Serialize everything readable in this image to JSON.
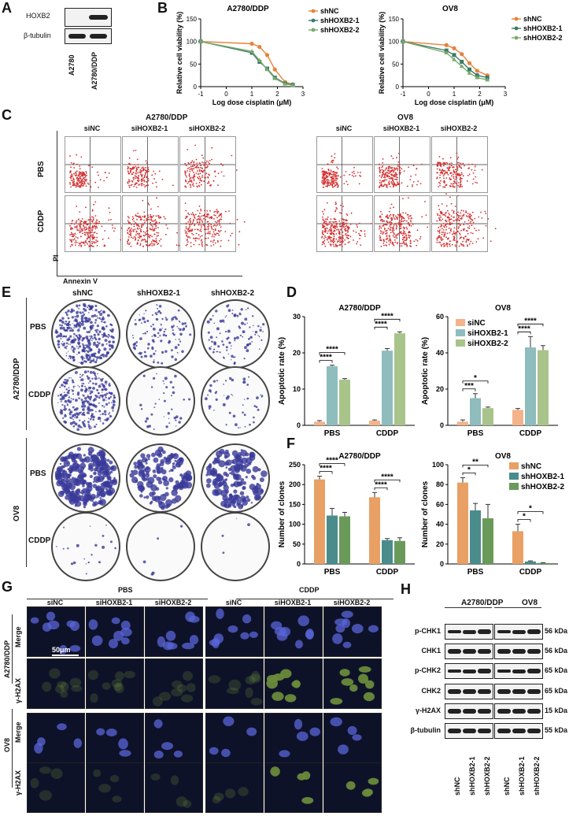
{
  "panels": {
    "A": "A",
    "B": "B",
    "C": "C",
    "D": "D",
    "E": "E",
    "F": "F",
    "G": "G",
    "H": "H"
  },
  "panelA": {
    "rows": [
      "HOXB2",
      "β-tubulin"
    ],
    "cols": [
      "A2780",
      "A2780/DDP"
    ]
  },
  "panelB": {
    "ylabel": "Relative cell viability (%)",
    "xlabel": "Log dose cisplatin (μM)",
    "legend": [
      "shNC",
      "shHOXB2-1",
      "shHOXB2-2"
    ],
    "colors": [
      "#e8823a",
      "#3a7a6a",
      "#7aaa6a"
    ]
  },
  "panelC": {
    "groups": [
      "A2780/DDP",
      "OV8"
    ],
    "cols": [
      "siNC",
      "siHOXB2-1",
      "siHOXB2-2"
    ],
    "rows": [
      "PBS",
      "CDDP"
    ],
    "ylabel": "PI",
    "xlabel": "Annexin V"
  },
  "panelE": {
    "cols": [
      "shNC",
      "shHOXB2-1",
      "shHOXB2-2"
    ],
    "groups": [
      "A2780/DDP",
      "OV8"
    ],
    "rows": [
      "PBS",
      "CDDP"
    ]
  },
  "panelD": {
    "ylabel": "Apoptotic rate (%)",
    "legend": [
      "siNC",
      "siHOXB2-1",
      "siHOXB2-2"
    ],
    "colors": [
      "#f4b38a",
      "#8fbcbc",
      "#a8c48a"
    ]
  },
  "panelF": {
    "ylabel": "Number of clones",
    "legend": [
      "shNC",
      "shHOXB2-1",
      "shHOXB2-2"
    ],
    "colors": [
      "#e8a064",
      "#4a8c8c",
      "#6a9a5a"
    ]
  },
  "panelG": {
    "conds": [
      "PBS",
      "CDDP"
    ],
    "cols": [
      "siNC",
      "siHOXB2-1",
      "siHOXB2-2",
      "siNC",
      "siHOXB2-1",
      "siHOXB2-2"
    ],
    "groups": [
      "A2780/DDP",
      "OV8"
    ],
    "rows": [
      "Merge",
      "γ-H2AX"
    ],
    "scalebar": "50μm"
  },
  "panelH": {
    "groups": [
      "A2780/DDP",
      "OV8"
    ],
    "rows": [
      "p-CHK1",
      "CHK1",
      "p-CHK2",
      "CHK2",
      "γ-H2AX",
      "β-tubulin"
    ],
    "sizes": [
      "56 kDa",
      "56 kDa",
      "65 kDa",
      "65 kDa",
      "15 kDa",
      "55 kDa"
    ],
    "lanes": [
      "shNC",
      "shHOXB2-1",
      "shHOXB2-2",
      "shNC",
      "shHOXB2-1",
      "shHOXB2-2"
    ]
  },
  "chart_data": [
    {
      "type": "line",
      "title": "A2780/DDP",
      "xlabel": "Log dose cisplatin (μM)",
      "ylabel": "Relative cell viability (%)",
      "xlim": [
        -1,
        3
      ],
      "ylim": [
        0,
        150
      ],
      "xticks": [
        "-1",
        "0",
        "1",
        "2",
        "3"
      ],
      "yticks": [
        "0",
        "50",
        "100",
        "150"
      ],
      "series": [
        {
          "name": "shNC",
          "x": [
            -1,
            1,
            1.3,
            1.6,
            1.9,
            2.3,
            2.6
          ],
          "y": [
            100,
            95,
            88,
            70,
            38,
            10,
            5
          ]
        },
        {
          "name": "shHOXB2-1",
          "x": [
            -1,
            1,
            1.3,
            1.6,
            1.9,
            2.3,
            2.6
          ],
          "y": [
            100,
            75,
            55,
            40,
            20,
            7,
            4
          ]
        },
        {
          "name": "shHOXB2-2",
          "x": [
            -1,
            1,
            1.3,
            1.6,
            1.9,
            2.3,
            2.6
          ],
          "y": [
            100,
            78,
            58,
            38,
            18,
            6,
            3
          ]
        }
      ]
    },
    {
      "type": "line",
      "title": "OV8",
      "xlabel": "Log dose cisplatin (μM)",
      "ylabel": "Relative cell viability (%)",
      "xlim": [
        -1,
        3
      ],
      "ylim": [
        0,
        150
      ],
      "xticks": [
        "-1",
        "0",
        "1",
        "2",
        "3"
      ],
      "yticks": [
        "0",
        "50",
        "100",
        "150"
      ],
      "series": [
        {
          "name": "shNC",
          "x": [
            -1,
            0.7,
            1,
            1.3,
            1.6,
            1.9,
            2.3
          ],
          "y": [
            100,
            92,
            85,
            72,
            52,
            35,
            25
          ]
        },
        {
          "name": "shHOXB2-1",
          "x": [
            -1,
            0.7,
            1,
            1.3,
            1.6,
            1.9,
            2.3
          ],
          "y": [
            100,
            80,
            70,
            55,
            38,
            25,
            20
          ]
        },
        {
          "name": "shHOXB2-2",
          "x": [
            -1,
            0.7,
            1,
            1.3,
            1.6,
            1.9,
            2.3
          ],
          "y": [
            100,
            75,
            60,
            45,
            30,
            20,
            15
          ]
        }
      ]
    },
    {
      "type": "bar",
      "title": "A2780/DDP",
      "ylabel": "Apoptotic rate (%)",
      "categories": [
        "PBS",
        "CDDP"
      ],
      "ylim": [
        0,
        30
      ],
      "yticks": [
        "0",
        "10",
        "20",
        "30"
      ],
      "series": [
        {
          "name": "siNC",
          "values": [
            1.0,
            1.3
          ],
          "err": [
            0.3,
            0.2
          ]
        },
        {
          "name": "siHOXB2-1",
          "values": [
            16.3,
            20.6
          ],
          "err": [
            0.3,
            0.6
          ]
        },
        {
          "name": "siHOXB2-2",
          "values": [
            12.6,
            25.4
          ],
          "err": [
            0.3,
            0.4
          ]
        }
      ],
      "sig": [
        [
          "****",
          "****"
        ],
        [
          "****",
          "****"
        ]
      ]
    },
    {
      "type": "bar",
      "title": "OV8",
      "ylabel": "Apoptotic rate (%)",
      "categories": [
        "PBS",
        "CDDP"
      ],
      "ylim": [
        0,
        60
      ],
      "yticks": [
        "0",
        "20",
        "40",
        "60"
      ],
      "series": [
        {
          "name": "siNC",
          "values": [
            2.0,
            8.5
          ],
          "err": [
            1.0,
            0.8
          ]
        },
        {
          "name": "siHOXB2-1",
          "values": [
            15.0,
            43.0
          ],
          "err": [
            2.5,
            6.0
          ]
        },
        {
          "name": "siHOXB2-2",
          "values": [
            9.5,
            41.5
          ],
          "err": [
            0.6,
            2.5
          ]
        }
      ],
      "sig": [
        [
          "***",
          "*"
        ],
        [
          "****",
          "****"
        ]
      ]
    },
    {
      "type": "bar",
      "title": "A2780/DDP",
      "ylabel": "Number of clones",
      "categories": [
        "PBS",
        "CDDP"
      ],
      "ylim": [
        0,
        250
      ],
      "yticks": [
        "0",
        "50",
        "100",
        "150",
        "200",
        "250"
      ],
      "series": [
        {
          "name": "shNC",
          "values": [
            213,
            168
          ],
          "err": [
            8,
            12
          ]
        },
        {
          "name": "shHOXB2-1",
          "values": [
            122,
            60
          ],
          "err": [
            18,
            4
          ]
        },
        {
          "name": "shHOXB2-2",
          "values": [
            120,
            58
          ],
          "err": [
            10,
            8
          ]
        }
      ],
      "sig": [
        [
          "****",
          "****"
        ],
        [
          "****",
          "****"
        ]
      ]
    },
    {
      "type": "bar",
      "title": "OV8",
      "ylabel": "Number of clones",
      "categories": [
        "PBS",
        "CDDP"
      ],
      "ylim": [
        0,
        100
      ],
      "yticks": [
        "0",
        "20",
        "40",
        "60",
        "80",
        "100"
      ],
      "series": [
        {
          "name": "shNC",
          "values": [
            82,
            33
          ],
          "err": [
            5,
            7
          ]
        },
        {
          "name": "shHOXB2-1",
          "values": [
            54,
            2.5
          ],
          "err": [
            7,
            0.6
          ]
        },
        {
          "name": "shHOXB2-2",
          "values": [
            46,
            1
          ],
          "err": [
            14,
            0.3
          ]
        }
      ],
      "sig": [
        [
          "*",
          "**"
        ],
        [
          "*",
          "*"
        ]
      ]
    }
  ]
}
